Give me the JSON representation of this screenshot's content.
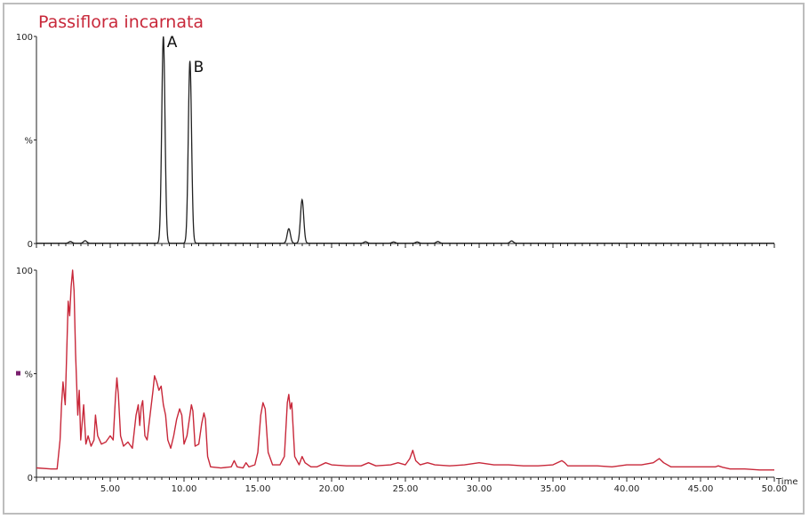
{
  "chart_data": [
    {
      "type": "line",
      "title": "Passiflora incarnata",
      "ylabel": "%",
      "xlabel": "",
      "xlim": [
        0,
        50
      ],
      "ylim": [
        0,
        100
      ],
      "y_ticks": [
        "0",
        "%",
        "100"
      ],
      "x_ticks": [],
      "color": "#222222",
      "annotations": [
        {
          "text": "A",
          "x": 8.6,
          "y": 100
        },
        {
          "text": "B",
          "x": 10.4,
          "y": 88
        }
      ],
      "peaks": [
        {
          "x": 2.3,
          "y": 0.8
        },
        {
          "x": 3.3,
          "y": 1.2
        },
        {
          "x": 8.6,
          "y": 100
        },
        {
          "x": 10.4,
          "y": 88
        },
        {
          "x": 17.1,
          "y": 7
        },
        {
          "x": 18.0,
          "y": 21
        },
        {
          "x": 22.3,
          "y": 0.7
        },
        {
          "x": 24.2,
          "y": 0.6
        },
        {
          "x": 25.8,
          "y": 0.6
        },
        {
          "x": 27.2,
          "y": 0.8
        },
        {
          "x": 32.2,
          "y": 1.1
        }
      ]
    },
    {
      "type": "line",
      "title": "",
      "ylabel": "%",
      "xlabel": "Time",
      "xlim": [
        0,
        50
      ],
      "ylim": [
        0,
        100
      ],
      "y_ticks": [
        "0",
        "%",
        "100"
      ],
      "x_ticks": [
        "5.00",
        "10.00",
        "15.00",
        "20.00",
        "25.00",
        "30.00",
        "35.00",
        "40.00",
        "45.00",
        "50.00"
      ],
      "color": "#c8283a",
      "legend_marker_color": "#7a1f6e",
      "points": [
        [
          0.0,
          4.5
        ],
        [
          1.0,
          4.0
        ],
        [
          1.4,
          4.0
        ],
        [
          1.6,
          18
        ],
        [
          1.7,
          35
        ],
        [
          1.8,
          46
        ],
        [
          1.95,
          35
        ],
        [
          2.05,
          60
        ],
        [
          2.15,
          85
        ],
        [
          2.25,
          78
        ],
        [
          2.35,
          92
        ],
        [
          2.45,
          100
        ],
        [
          2.55,
          90
        ],
        [
          2.65,
          60
        ],
        [
          2.8,
          30
        ],
        [
          2.9,
          42
        ],
        [
          3.0,
          18
        ],
        [
          3.2,
          35
        ],
        [
          3.35,
          16
        ],
        [
          3.5,
          20
        ],
        [
          3.7,
          15
        ],
        [
          3.9,
          18
        ],
        [
          4.0,
          30
        ],
        [
          4.15,
          20
        ],
        [
          4.4,
          16
        ],
        [
          4.7,
          17
        ],
        [
          5.0,
          20
        ],
        [
          5.2,
          18
        ],
        [
          5.35,
          38
        ],
        [
          5.45,
          48
        ],
        [
          5.55,
          40
        ],
        [
          5.7,
          20
        ],
        [
          5.9,
          15
        ],
        [
          6.2,
          17
        ],
        [
          6.5,
          14
        ],
        [
          6.75,
          30
        ],
        [
          6.9,
          35
        ],
        [
          7.0,
          25
        ],
        [
          7.1,
          34
        ],
        [
          7.2,
          37
        ],
        [
          7.35,
          20
        ],
        [
          7.5,
          18
        ],
        [
          7.7,
          30
        ],
        [
          7.9,
          42
        ],
        [
          8.0,
          49
        ],
        [
          8.15,
          46
        ],
        [
          8.3,
          42
        ],
        [
          8.45,
          44
        ],
        [
          8.6,
          35
        ],
        [
          8.75,
          30
        ],
        [
          8.9,
          18
        ],
        [
          9.1,
          14
        ],
        [
          9.3,
          20
        ],
        [
          9.5,
          28
        ],
        [
          9.7,
          33
        ],
        [
          9.85,
          30
        ],
        [
          10.0,
          16
        ],
        [
          10.2,
          20
        ],
        [
          10.4,
          30
        ],
        [
          10.5,
          35
        ],
        [
          10.6,
          32
        ],
        [
          10.75,
          15
        ],
        [
          11.0,
          16
        ],
        [
          11.2,
          26
        ],
        [
          11.35,
          31
        ],
        [
          11.45,
          28
        ],
        [
          11.6,
          10
        ],
        [
          11.8,
          5
        ],
        [
          12.5,
          4.5
        ],
        [
          13.2,
          5
        ],
        [
          13.4,
          8
        ],
        [
          13.6,
          5
        ],
        [
          14.0,
          4.5
        ],
        [
          14.2,
          7
        ],
        [
          14.4,
          5
        ],
        [
          14.8,
          6
        ],
        [
          15.0,
          12
        ],
        [
          15.2,
          30
        ],
        [
          15.35,
          36
        ],
        [
          15.5,
          33
        ],
        [
          15.7,
          12
        ],
        [
          16.0,
          6
        ],
        [
          16.5,
          6
        ],
        [
          16.8,
          10
        ],
        [
          17.0,
          36
        ],
        [
          17.1,
          40
        ],
        [
          17.2,
          33
        ],
        [
          17.3,
          36
        ],
        [
          17.5,
          10
        ],
        [
          17.8,
          6
        ],
        [
          18.0,
          10
        ],
        [
          18.2,
          7
        ],
        [
          18.6,
          5
        ],
        [
          19.0,
          5
        ],
        [
          19.6,
          7
        ],
        [
          20.0,
          6
        ],
        [
          21.0,
          5.5
        ],
        [
          22.0,
          5.5
        ],
        [
          22.5,
          7
        ],
        [
          23.0,
          5.5
        ],
        [
          24.0,
          6
        ],
        [
          24.5,
          7
        ],
        [
          25.0,
          6
        ],
        [
          25.3,
          9
        ],
        [
          25.5,
          13
        ],
        [
          25.7,
          8
        ],
        [
          26.0,
          6
        ],
        [
          26.5,
          7
        ],
        [
          27.0,
          6
        ],
        [
          28.0,
          5.5
        ],
        [
          29.0,
          6
        ],
        [
          30.0,
          7
        ],
        [
          31.0,
          6
        ],
        [
          32.0,
          6
        ],
        [
          33.0,
          5.5
        ],
        [
          34.0,
          5.5
        ],
        [
          35.0,
          6
        ],
        [
          35.6,
          8
        ],
        [
          35.8,
          7
        ],
        [
          36.0,
          5.5
        ],
        [
          37.0,
          5.5
        ],
        [
          38.0,
          5.5
        ],
        [
          39.0,
          5
        ],
        [
          40.0,
          6
        ],
        [
          41.0,
          6
        ],
        [
          41.8,
          7
        ],
        [
          42.2,
          9
        ],
        [
          42.5,
          7
        ],
        [
          43.0,
          5
        ],
        [
          44.0,
          5
        ],
        [
          45.0,
          5
        ],
        [
          46.0,
          5
        ],
        [
          46.2,
          5.5
        ],
        [
          46.5,
          4.8
        ],
        [
          47.0,
          4
        ],
        [
          48.0,
          4
        ],
        [
          49.0,
          3.5
        ],
        [
          50.0,
          3.5
        ]
      ]
    }
  ]
}
